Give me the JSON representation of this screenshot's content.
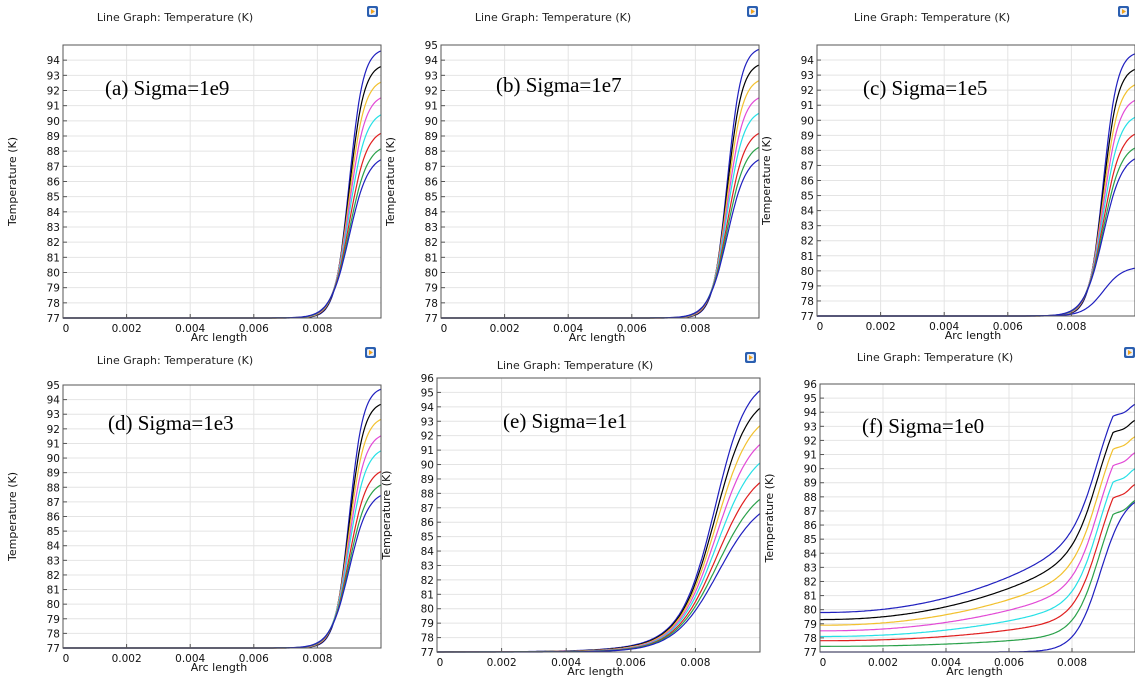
{
  "colors": [
    "#1f1fbf",
    "#000000",
    "#f2c12e",
    "#e24ad6",
    "#26e0e6",
    "#e01f1f",
    "#2aa14a",
    "#1f1fbf"
  ],
  "icon": "comsol-logo-icon",
  "chart_data": [
    {
      "type": "line",
      "title": "Line Graph: Temperature (K)",
      "annotation": "(a) Sigma=1e9",
      "xlabel": "Arc length",
      "ylabel": "Temperature (K)",
      "xlim": [
        0,
        0.01
      ],
      "ylim": [
        77,
        95
      ],
      "x_ticks": [
        "0",
        "0.002",
        "0.004",
        "0.006",
        "0.008"
      ],
      "y_ticks": [
        "77",
        "78",
        "79",
        "80",
        "81",
        "82",
        "83",
        "84",
        "85",
        "86",
        "87",
        "88",
        "89",
        "90",
        "91",
        "92",
        "93",
        "94"
      ],
      "grid": true,
      "model": {
        "base": 77,
        "mid": 0.009,
        "width": 0.00022,
        "plateaus": [
          94.8,
          93.8,
          92.8,
          91.8,
          90.7,
          89.5,
          88.5,
          87.8
        ],
        "growth": [
          0,
          0,
          0,
          0,
          0,
          0,
          0,
          0
        ]
      }
    },
    {
      "type": "line",
      "title": "Line Graph: Temperature (K)",
      "annotation": "(b) Sigma=1e7",
      "xlabel": "Arc length",
      "ylabel": "Temperature (K)",
      "xlim": [
        0,
        0.01
      ],
      "ylim": [
        77,
        95
      ],
      "x_ticks": [
        "0",
        "0.002",
        "0.004",
        "0.006",
        "0.008"
      ],
      "y_ticks": [
        "77",
        "78",
        "79",
        "80",
        "81",
        "82",
        "83",
        "84",
        "85",
        "86",
        "87",
        "88",
        "89",
        "90",
        "91",
        "92",
        "93",
        "94",
        "95"
      ],
      "grid": true,
      "model": {
        "base": 77,
        "mid": 0.009,
        "width": 0.00022,
        "plateaus": [
          94.9,
          93.9,
          92.9,
          91.8,
          90.8,
          89.5,
          88.6,
          87.8
        ],
        "growth": [
          0,
          0,
          0,
          0,
          0,
          0,
          0,
          0
        ]
      }
    },
    {
      "type": "line",
      "title": "Line Graph: Temperature (K)",
      "annotation": "(c) Sigma=1e5",
      "xlabel": "Arc length",
      "ylabel": "Temperature (K)",
      "xlim": [
        0,
        0.01
      ],
      "ylim": [
        77,
        95
      ],
      "x_ticks": [
        "0",
        "0.002",
        "0.004",
        "0.006",
        "0.008"
      ],
      "y_ticks": [
        "77",
        "78",
        "79",
        "80",
        "81",
        "82",
        "83",
        "84",
        "85",
        "86",
        "87",
        "88",
        "89",
        "90",
        "91",
        "92",
        "93",
        "94"
      ],
      "grid": true,
      "model": {
        "base": 77,
        "mid": 0.009,
        "width": 0.00022,
        "plateaus": [
          94.6,
          93.6,
          92.6,
          91.6,
          90.5,
          89.4,
          88.5,
          87.8,
          80.3
        ],
        "growth": [
          0,
          0,
          0,
          0,
          0,
          0,
          0,
          0,
          0
        ]
      }
    },
    {
      "type": "line",
      "title": "Line Graph: Temperature (K)",
      "annotation": "(d) Sigma=1e3",
      "xlabel": "Arc length",
      "ylabel": "Temperature (K)",
      "xlim": [
        0,
        0.01
      ],
      "ylim": [
        77,
        95
      ],
      "x_ticks": [
        "0",
        "0.002",
        "0.004",
        "0.006",
        "0.008"
      ],
      "y_ticks": [
        "77",
        "78",
        "79",
        "80",
        "81",
        "82",
        "83",
        "84",
        "85",
        "86",
        "87",
        "88",
        "89",
        "90",
        "91",
        "92",
        "93",
        "94",
        "95"
      ],
      "grid": true,
      "model": {
        "base": 77,
        "mid": 0.009,
        "width": 0.00022,
        "plateaus": [
          94.9,
          93.9,
          92.9,
          91.8,
          90.8,
          89.4,
          88.5,
          87.8
        ],
        "growth": [
          0,
          0,
          0,
          0,
          0,
          0,
          0,
          0
        ]
      }
    },
    {
      "type": "line",
      "title": "Line Graph: Temperature (K)",
      "annotation": "(e) Sigma=1e1",
      "xlabel": "Arc length",
      "ylabel": "Temperature (K)",
      "xlim": [
        0,
        0.01
      ],
      "ylim": [
        77,
        96
      ],
      "x_ticks": [
        "0",
        "0.002",
        "0.004",
        "0.006",
        "0.008"
      ],
      "y_ticks": [
        "77",
        "78",
        "79",
        "80",
        "81",
        "82",
        "83",
        "84",
        "85",
        "86",
        "87",
        "88",
        "89",
        "90",
        "91",
        "92",
        "93",
        "94",
        "95",
        "96"
      ],
      "grid": true,
      "model": {
        "base": 77,
        "mid": 0.0087,
        "width": 0.0005,
        "plateaus": [
          95.9,
          94.8,
          93.7,
          92.5,
          91.3,
          90.0,
          88.9,
          88.0
        ],
        "growth": [
          0.15,
          0.13,
          0.11,
          0.09,
          0.07,
          0.05,
          0.03,
          0.0
        ]
      }
    },
    {
      "type": "line",
      "title": "Line Graph: Temperature (K)",
      "annotation": "(f) Sigma=1e0",
      "xlabel": "Arc length",
      "ylabel": "Temperature (K)",
      "xlim": [
        0,
        0.01
      ],
      "ylim": [
        77,
        96
      ],
      "x_ticks": [
        "0",
        "0.002",
        "0.004",
        "0.006",
        "0.008"
      ],
      "y_ticks": [
        "77",
        "78",
        "79",
        "80",
        "81",
        "82",
        "83",
        "84",
        "85",
        "86",
        "87",
        "88",
        "89",
        "90",
        "91",
        "92",
        "93",
        "94",
        "95",
        "96"
      ],
      "grid": true,
      "model": {
        "base": 77,
        "mid": 0.0089,
        "width": 0.0004,
        "plateaus": [
          96.4,
          95.3,
          94.2,
          93.1,
          92.0,
          90.9,
          89.8,
          88.3
        ],
        "starts": [
          79.8,
          79.3,
          78.9,
          78.5,
          78.1,
          77.8,
          77.4,
          77.0
        ],
        "knees": [
          85.5,
          84.3,
          83.0,
          81.8,
          80.6,
          79.5,
          78.3,
          77.0
        ]
      }
    }
  ]
}
